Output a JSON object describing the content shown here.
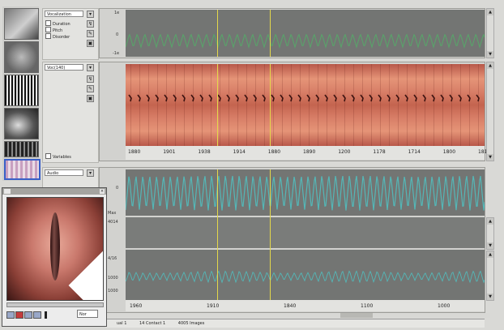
{
  "thumbnails": [
    {
      "name": "thumb-larynx-still"
    },
    {
      "name": "thumb-larynx-gray"
    },
    {
      "name": "thumb-waveform"
    },
    {
      "name": "thumb-vocal-folds"
    },
    {
      "name": "thumb-strip"
    },
    {
      "name": "thumb-kymogram"
    }
  ],
  "top_panel": {
    "combo_value": "Vocalization",
    "checkboxes": [
      "Duration",
      "Pitch",
      "Disorder"
    ],
    "y_ticks": [
      "1e",
      "0",
      "-1e"
    ]
  },
  "middle_panel": {
    "combo_value": "Voc(140)",
    "checkbox_label": "Variables",
    "x_ticks": [
      "1880",
      "1901",
      "1938",
      "1914",
      "1880",
      "1890",
      "1200",
      "1178",
      "1714",
      "1800",
      "1811"
    ]
  },
  "bottom_panel": {
    "combo_value": "Audio",
    "y_ticks_top": [
      "0",
      "Max"
    ],
    "y_ticks_mid": [
      "4014"
    ],
    "y_ticks_low": [
      "4/16",
      "1000",
      "1000"
    ],
    "x_ticks": [
      "1960",
      "1910",
      "1840",
      "1100",
      "1000"
    ]
  },
  "status_bar": {
    "items": [
      "ual 1",
      "14  Contact 1",
      "4005  Images"
    ]
  },
  "video": {
    "zoom_value": "Nor"
  },
  "colors": {
    "top_wave": "#59a36a",
    "kymo_base": "#d9876a",
    "bottom_wave": "#54b7b7",
    "cursor": "#e4d84a",
    "selection": "#3a60c8"
  }
}
